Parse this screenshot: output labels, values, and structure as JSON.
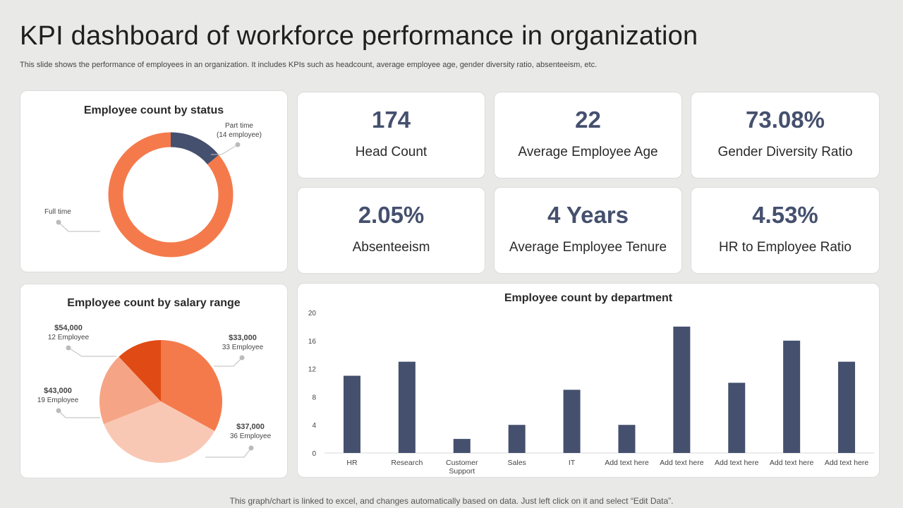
{
  "header": {
    "title": "KPI dashboard of workforce performance in organization",
    "subtitle": "This slide shows the performance of employees in an organization. It includes KPIs such as headcount, average employee age, gender diversity ratio, absenteeism, etc."
  },
  "kpis": [
    {
      "value": "174",
      "label": "Head Count"
    },
    {
      "value": "22",
      "label": "Average Employee Age"
    },
    {
      "value": "73.08%",
      "label": "Gender Diversity Ratio"
    },
    {
      "value": "2.05%",
      "label": "Absenteeism"
    },
    {
      "value": "4 Years",
      "label": "Average Employee Tenure"
    },
    {
      "value": "4.53%",
      "label": "HR to Employee Ratio"
    }
  ],
  "footer": "This graph/chart is linked to excel, and changes automatically based on data. Just left click on it and select “Edit Data”.",
  "colors": {
    "navy": "#45506e",
    "orange": "#f47a4c",
    "dark_orange": "#e04a14",
    "light_orange": "#f5a586",
    "pale_orange": "#f9c8b5"
  },
  "chart_data": [
    {
      "type": "pie",
      "variant": "donut",
      "title": "Employee count by status",
      "slices": [
        {
          "label": "Part time",
          "sublabel": "(14 employee)",
          "value": 14,
          "color": "#45506e"
        },
        {
          "label": "Full time",
          "sublabel": "",
          "value": 86,
          "color": "#f47a4c"
        }
      ]
    },
    {
      "type": "pie",
      "title": "Employee count by salary range",
      "slices": [
        {
          "label": "$33,000",
          "sublabel": "33 Employee",
          "value": 33,
          "color": "#f47a4c"
        },
        {
          "label": "$37,000",
          "sublabel": "36 Employee",
          "value": 36,
          "color": "#f9c8b5"
        },
        {
          "label": "$43,000",
          "sublabel": "19 Employee",
          "value": 19,
          "color": "#f5a586"
        },
        {
          "label": "$54,000",
          "sublabel": "12 Employee",
          "value": 12,
          "color": "#e04a14"
        }
      ]
    },
    {
      "type": "bar",
      "title": "Employee count by department",
      "categories": [
        "HR",
        "Research",
        "Customer Support",
        "Sales",
        "IT",
        "Add text here",
        "Add text here",
        "Add text here",
        "Add text here",
        "Add text here"
      ],
      "values": [
        11,
        13,
        2,
        4,
        9,
        4,
        18,
        10,
        16,
        13
      ],
      "ylim": [
        0,
        20
      ],
      "yticks": [
        0,
        4,
        8,
        12,
        16,
        20
      ],
      "xlabel": "",
      "ylabel": "",
      "color": "#45506e"
    }
  ]
}
